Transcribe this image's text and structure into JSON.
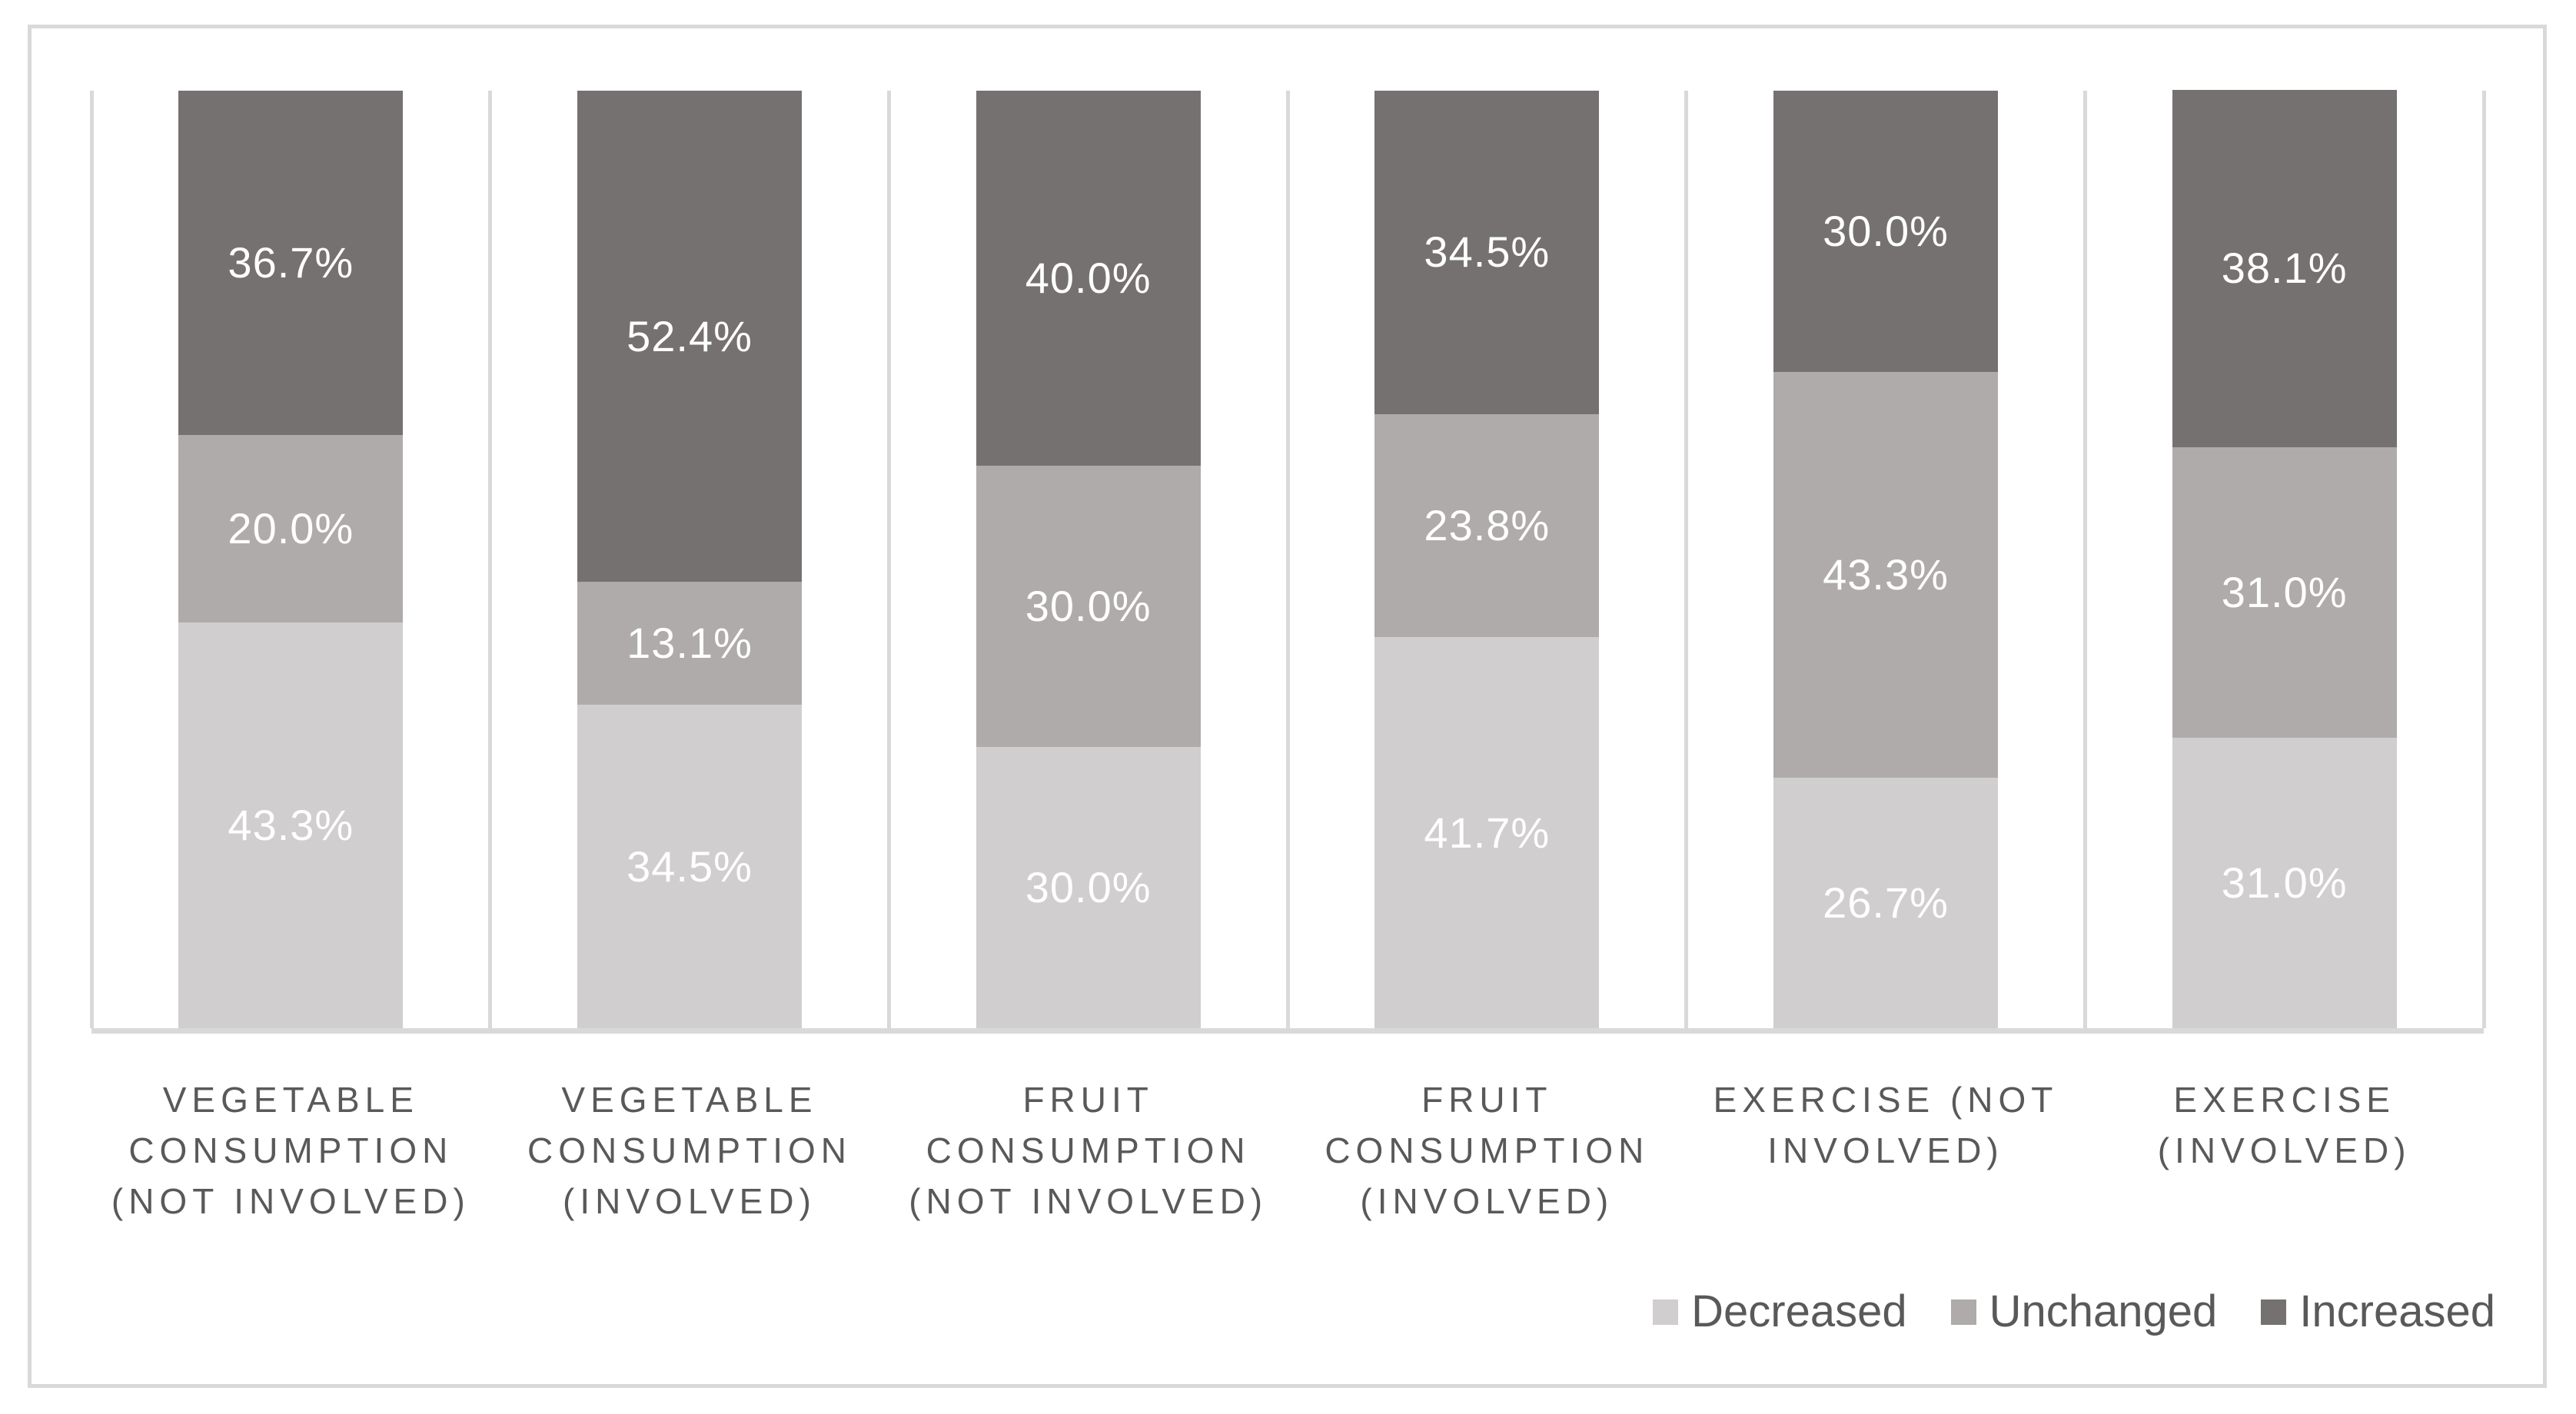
{
  "figure": {
    "background": "#ffffff",
    "border_color": "#d9d9d9"
  },
  "axis": {
    "line_color": "#d9d9d9",
    "gridline_color": "#d9d9d9",
    "label_color": "#595959"
  },
  "data_labels": {
    "color": "#ffffff",
    "suffix": "%"
  },
  "legend": {
    "text_color": "#595959",
    "items": [
      {
        "label": "Decreased",
        "color": "#d0cece"
      },
      {
        "label": "Unchanged",
        "color": "#afabab"
      },
      {
        "label": "Increased",
        "color": "#767171"
      }
    ]
  },
  "chart_data": {
    "type": "bar",
    "subtype": "100-percent-stacked-column",
    "title": "",
    "xlabel": "",
    "ylabel": "",
    "ylim": [
      0,
      100
    ],
    "grid": "vertical-category-boundary-lines",
    "legend_position": "bottom-right",
    "categories": [
      "VEGETABLE CONSUMPTION (NOT INVOLVED)",
      "VEGETABLE CONSUMPTION (INVOLVED)",
      "FRUIT CONSUMPTION (NOT INVOLVED)",
      "FRUIT CONSUMPTION (INVOLVED)",
      "EXERCISE (NOT INVOLVED)",
      "EXERCISE (INVOLVED)"
    ],
    "category_label_lines": [
      [
        "VEGETABLE",
        "CONSUMPTION",
        "(NOT INVOLVED)"
      ],
      [
        "VEGETABLE",
        "CONSUMPTION",
        "(INVOLVED)"
      ],
      [
        "FRUIT",
        "CONSUMPTION",
        "(NOT INVOLVED)"
      ],
      [
        "FRUIT",
        "CONSUMPTION",
        "(INVOLVED)"
      ],
      [
        "EXERCISE (NOT",
        "INVOLVED)"
      ],
      [
        "EXERCISE",
        "(INVOLVED)"
      ]
    ],
    "stack_order_bottom_to_top": [
      "Decreased",
      "Unchanged",
      "Increased"
    ],
    "series": [
      {
        "name": "Decreased",
        "color": "#d0cece",
        "values": [
          43.3,
          34.5,
          30.0,
          41.7,
          26.7,
          31.0
        ]
      },
      {
        "name": "Unchanged",
        "color": "#afabab",
        "values": [
          20.0,
          13.1,
          30.0,
          23.8,
          43.3,
          31.0
        ]
      },
      {
        "name": "Increased",
        "color": "#767171",
        "values": [
          36.7,
          52.4,
          40.0,
          34.5,
          30.0,
          38.1
        ]
      }
    ]
  }
}
